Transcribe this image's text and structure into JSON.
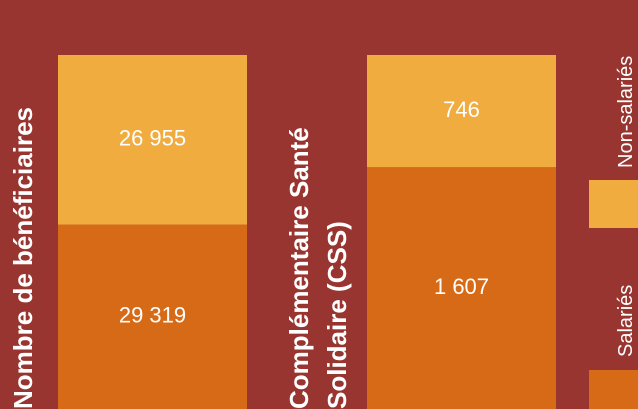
{
  "chart_data": {
    "type": "bar",
    "stacked": "percent",
    "categories": [
      "Nombre de bénéficiaires",
      "Complémentaire Santé Solidaire (CSS)"
    ],
    "series": [
      {
        "name": "Salariés",
        "color": "#d66a17",
        "values": [
          29319,
          1607
        ],
        "value_labels": [
          "29 319",
          "1 607"
        ]
      },
      {
        "name": "Non-salariés",
        "color": "#f0ac3e",
        "values": [
          26955,
          746
        ],
        "value_labels": [
          "26 955",
          "746"
        ]
      }
    ]
  }
}
